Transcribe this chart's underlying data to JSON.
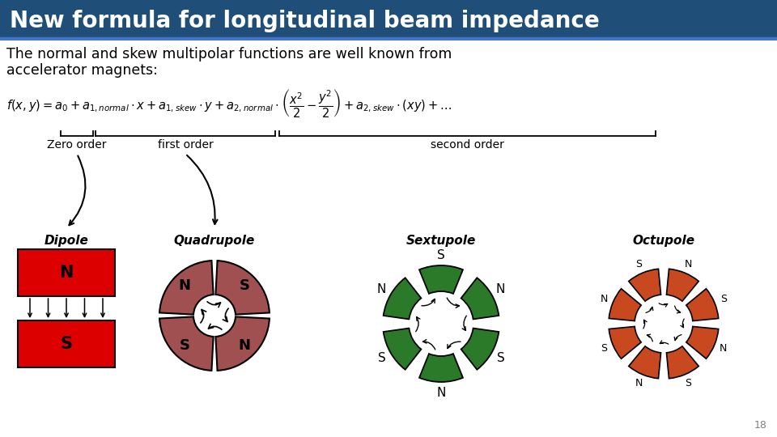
{
  "title": "New formula for longitudinal beam impedance",
  "title_bg": "#1F4E79",
  "title_color": "#FFFFFF",
  "bg_color": "#FFFFFF",
  "subtitle_line1": "The normal and skew multipolar functions are well known from",
  "subtitle_line2": "accelerator magnets:",
  "zero_order_label": "Zero order",
  "first_order_label": "first order",
  "second_order_label": "second order",
  "dipole_label": "Dipole",
  "quadrupole_label": "Quadrupole",
  "sextupole_label": "Sextupole",
  "octupole_label": "Octupole",
  "page_number": "18",
  "red_color": "#DD0000",
  "dark_red_color": "#A05050",
  "green_color": "#2A7A2A",
  "orange_red": "#C84820"
}
